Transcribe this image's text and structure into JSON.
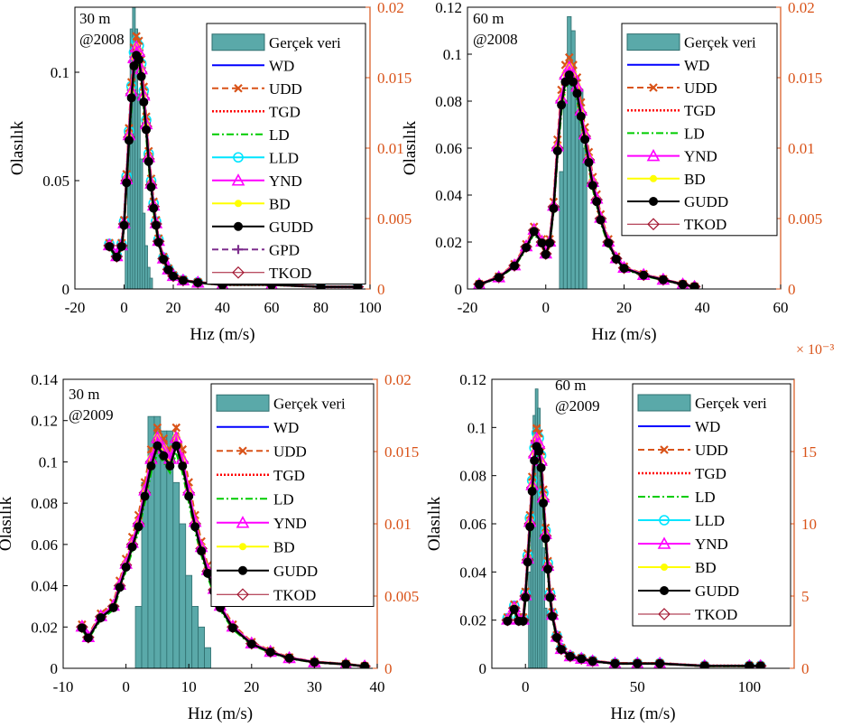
{
  "shared": {
    "ylabel": "Olasılık",
    "xlabel": "Hız (m/s)"
  },
  "colors": {
    "histogram": "#5aa9a9",
    "right_axis": "#d95319",
    "WD": "#0000ff",
    "UDD": "#d95319",
    "TGD": "#ff0000",
    "LD": "#00cc00",
    "LLD": "#00e5ff",
    "YND": "#ff00ff",
    "BD": "#ffff00",
    "GUDD": "#000000",
    "GPD": "#7e2f8e",
    "TKOD": "#a2142f"
  },
  "chart_data": [
    {
      "type": "bar",
      "panel_title": [
        "30 m",
        "@2008"
      ],
      "xlim": [
        -20,
        100
      ],
      "xticks": [
        "-20",
        "0",
        "20",
        "40",
        "60",
        "80",
        "100"
      ],
      "ylim": [
        0,
        0.13
      ],
      "yticks": [
        "0",
        "0.05",
        "0.1"
      ],
      "y_right_lim": [
        0,
        0.02
      ],
      "y_right_ticks": [
        "0",
        "0.005",
        "0.01",
        "0.015",
        "0.02"
      ],
      "right_exponent": "",
      "histogram": {
        "x": [
          1,
          2,
          3,
          4,
          5,
          6,
          7,
          8,
          9,
          10,
          11
        ],
        "values": [
          0.02,
          0.07,
          0.12,
          0.13,
          0.12,
          0.09,
          0.06,
          0.035,
          0.02,
          0.01,
          0.005
        ]
      },
      "legend": [
        "Gerçek veri",
        "WD",
        "UDD",
        "TGD",
        "LD",
        "LLD",
        "YND",
        "BD",
        "GUDD",
        "GPD",
        "TKOD"
      ],
      "curve": {
        "x": [
          -6,
          -3,
          -1,
          0,
          1,
          2,
          3,
          4,
          5,
          6,
          7,
          8,
          9,
          10,
          11,
          12,
          13,
          14,
          16,
          18,
          20,
          24,
          30,
          40,
          60,
          80,
          95
        ],
        "values": [
          0.02,
          0.015,
          0.02,
          0.03,
          0.05,
          0.07,
          0.09,
          0.105,
          0.11,
          0.108,
          0.1,
          0.088,
          0.075,
          0.06,
          0.048,
          0.038,
          0.03,
          0.022,
          0.014,
          0.009,
          0.006,
          0.004,
          0.003,
          0.002,
          0.002,
          0.001,
          0.001
        ]
      }
    },
    {
      "type": "bar",
      "panel_title": [
        "60 m",
        "@2008"
      ],
      "xlim": [
        -20,
        60
      ],
      "xticks": [
        "-20",
        "0",
        "20",
        "40",
        "60"
      ],
      "ylim": [
        0,
        0.12
      ],
      "yticks": [
        "0",
        "0.02",
        "0.04",
        "0.06",
        "0.08",
        "0.1",
        "0.12"
      ],
      "y_right_lim": [
        0,
        0.02
      ],
      "y_right_ticks": [
        "0",
        "0.005",
        "0.01",
        "0.015",
        "0.02"
      ],
      "right_exponent": "",
      "histogram": {
        "x": [
          4,
          5,
          6,
          7,
          8,
          9,
          10
        ],
        "values": [
          0.05,
          0.08,
          0.116,
          0.11,
          0.09,
          0.085,
          0.06
        ]
      },
      "legend": [
        "Gerçek veri",
        "WD",
        "UDD",
        "TGD",
        "LD",
        "YND",
        "BD",
        "GUDD",
        "TKOD"
      ],
      "curve": {
        "x": [
          -17,
          -12,
          -8,
          -5,
          -3,
          -1,
          0,
          1,
          2,
          3,
          4,
          5,
          6,
          7,
          8,
          9,
          10,
          11,
          12,
          13,
          14,
          16,
          18,
          20,
          25,
          30,
          35,
          38
        ],
        "values": [
          0.002,
          0.005,
          0.01,
          0.018,
          0.025,
          0.02,
          0.015,
          0.02,
          0.035,
          0.06,
          0.08,
          0.09,
          0.093,
          0.09,
          0.085,
          0.075,
          0.065,
          0.055,
          0.045,
          0.038,
          0.03,
          0.02,
          0.013,
          0.009,
          0.006,
          0.004,
          0.002,
          0.001
        ]
      }
    },
    {
      "type": "bar",
      "panel_title": [
        "30 m",
        "@2009"
      ],
      "xlim": [
        -10,
        40
      ],
      "xticks": [
        "-10",
        "0",
        "10",
        "20",
        "30",
        "40"
      ],
      "ylim": [
        0,
        0.14
      ],
      "yticks": [
        "0",
        "0.02",
        "0.04",
        "0.06",
        "0.08",
        "0.1",
        "0.12",
        "0.14"
      ],
      "y_right_lim": [
        0,
        0.02
      ],
      "y_right_ticks": [
        "0",
        "0.005",
        "0.01",
        "0.015",
        "0.02"
      ],
      "right_exponent": "",
      "histogram": {
        "x": [
          2,
          3,
          4,
          5,
          6,
          7,
          8,
          9,
          10,
          11,
          12,
          13
        ],
        "values": [
          0.03,
          0.09,
          0.122,
          0.122,
          0.115,
          0.115,
          0.09,
          0.07,
          0.045,
          0.03,
          0.02,
          0.01
        ]
      },
      "legend": [
        "Gerçek veri",
        "WD",
        "UDD",
        "TGD",
        "LD",
        "YND",
        "BD",
        "GUDD",
        "TKOD"
      ],
      "curve": {
        "x": [
          -7,
          -6,
          -4,
          -2,
          -1,
          0,
          1,
          2,
          3,
          4,
          5,
          6,
          7,
          8,
          9,
          10,
          11,
          12,
          13,
          14,
          15,
          17,
          20,
          23,
          26,
          30,
          35,
          38
        ],
        "values": [
          0.02,
          0.015,
          0.025,
          0.03,
          0.04,
          0.05,
          0.06,
          0.07,
          0.085,
          0.1,
          0.11,
          0.105,
          0.1,
          0.11,
          0.1,
          0.085,
          0.07,
          0.058,
          0.047,
          0.038,
          0.03,
          0.02,
          0.012,
          0.008,
          0.005,
          0.003,
          0.002,
          0.001
        ]
      }
    },
    {
      "type": "bar",
      "panel_title": [
        "60 m",
        "@2009"
      ],
      "xlim": [
        -15,
        120
      ],
      "xticks": [
        "0",
        "50",
        "100"
      ],
      "ylim": [
        0,
        0.12
      ],
      "yticks": [
        "0",
        "0.02",
        "0.04",
        "0.06",
        "0.08",
        "0.1",
        "0.12"
      ],
      "y_right_lim": [
        0,
        20
      ],
      "y_right_ticks": [
        "0",
        "5",
        "10",
        "15"
      ],
      "right_exponent": "× 10⁻³",
      "histogram": {
        "x": [
          2,
          3,
          4,
          5,
          6,
          7,
          8,
          9
        ],
        "values": [
          0.04,
          0.08,
          0.105,
          0.116,
          0.108,
          0.08,
          0.05,
          0.025
        ]
      },
      "legend": [
        "Gerçek veri",
        "WD",
        "UDD",
        "TGD",
        "LD",
        "LLD",
        "YND",
        "BD",
        "GUDD",
        "TKOD"
      ],
      "curve": {
        "x": [
          -8,
          -5,
          -3,
          -1,
          0,
          1,
          2,
          3,
          4,
          5,
          6,
          7,
          8,
          9,
          10,
          11,
          12,
          14,
          16,
          20,
          25,
          30,
          40,
          50,
          60,
          80,
          100,
          105
        ],
        "values": [
          0.02,
          0.025,
          0.02,
          0.02,
          0.03,
          0.045,
          0.06,
          0.075,
          0.088,
          0.094,
          0.092,
          0.085,
          0.07,
          0.055,
          0.042,
          0.03,
          0.022,
          0.013,
          0.008,
          0.005,
          0.004,
          0.003,
          0.002,
          0.002,
          0.002,
          0.001,
          0.001,
          0.001
        ]
      }
    }
  ]
}
